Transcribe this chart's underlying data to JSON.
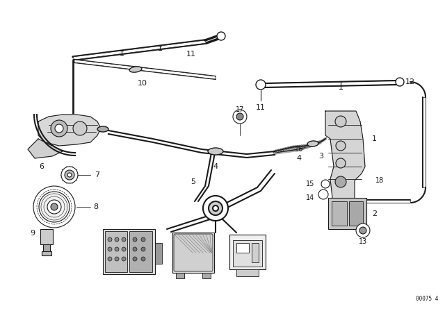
{
  "bg_color": "#ffffff",
  "line_color": "#1a1a1a",
  "watermark": "00075 4"
}
